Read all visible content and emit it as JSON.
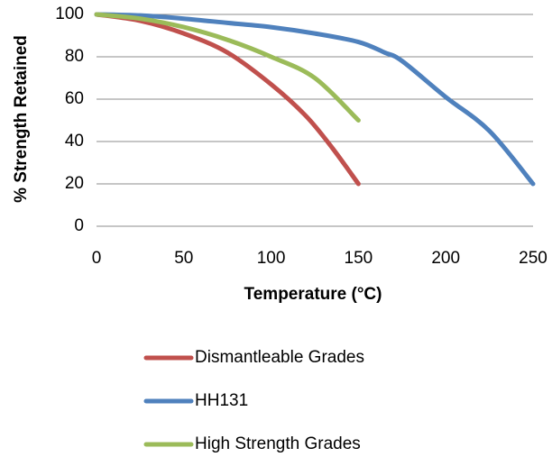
{
  "chart_data": {
    "type": "line",
    "title": "",
    "xlabel": "Temperature (°C)",
    "ylabel": "% Strength Retained",
    "xlim": [
      0,
      250
    ],
    "ylim": [
      0,
      100
    ],
    "x_ticks": [
      0,
      50,
      100,
      150,
      200,
      250
    ],
    "y_ticks": [
      0,
      20,
      40,
      60,
      80,
      100
    ],
    "grid": "horizontal",
    "legend_position": "bottom",
    "series": [
      {
        "name": "Dismantleable Grades",
        "color": "#c0504d",
        "x": [
          0,
          25,
          50,
          75,
          100,
          120,
          135,
          150
        ],
        "y": [
          100,
          97,
          91,
          82,
          67,
          52,
          37,
          20
        ]
      },
      {
        "name": "HH131",
        "color": "#4f81bd",
        "x": [
          0,
          25,
          50,
          75,
          100,
          125,
          150,
          165,
          175,
          200,
          225,
          250
        ],
        "y": [
          100,
          99.5,
          98,
          96,
          94,
          91,
          87,
          82,
          78,
          61,
          45,
          20
        ]
      },
      {
        "name": "High Strength Grades",
        "color": "#9bbb59",
        "x": [
          0,
          25,
          50,
          75,
          100,
          125,
          150
        ],
        "y": [
          100,
          98,
          94,
          88,
          80,
          70,
          50
        ]
      }
    ]
  }
}
